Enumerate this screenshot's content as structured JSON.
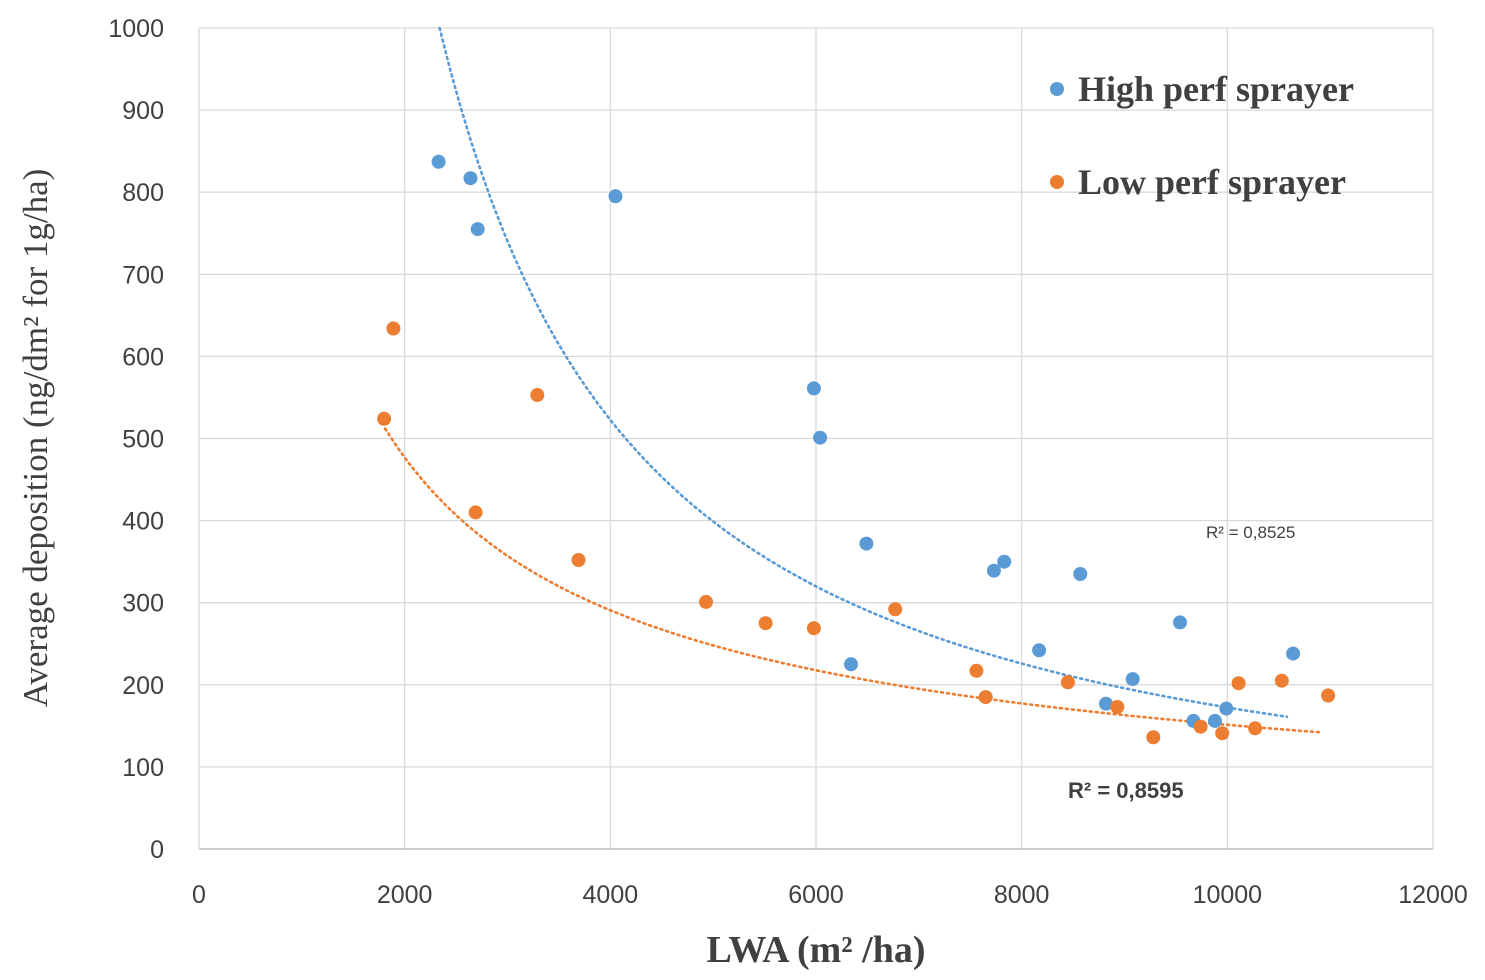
{
  "chart_data": {
    "type": "scatter",
    "title": "",
    "xlabel": "LWA (m² /ha)",
    "ylabel": "Average deposition (ng/dm² for 1g/ha)",
    "xlim": [
      0,
      12000
    ],
    "ylim": [
      0,
      1000
    ],
    "x_ticks": [
      0,
      2000,
      4000,
      6000,
      8000,
      10000,
      12000
    ],
    "y_ticks": [
      0,
      100,
      200,
      300,
      400,
      500,
      600,
      700,
      800,
      900,
      1000
    ],
    "grid": "vertical-and-horizontal",
    "legend_position": "top-right",
    "series": [
      {
        "name": "High perf sprayer",
        "color": "#5B9BD5",
        "points": [
          [
            2330,
            837
          ],
          [
            2640,
            817
          ],
          [
            2710,
            755
          ],
          [
            4050,
            795
          ],
          [
            5980,
            561
          ],
          [
            6040,
            501
          ],
          [
            6340,
            225
          ],
          [
            6490,
            372
          ],
          [
            7730,
            339
          ],
          [
            7830,
            350
          ],
          [
            8170,
            242
          ],
          [
            8570,
            335
          ],
          [
            8820,
            177
          ],
          [
            9080,
            207
          ],
          [
            9540,
            276
          ],
          [
            9670,
            156
          ],
          [
            9880,
            156
          ],
          [
            9990,
            171
          ],
          [
            10640,
            238
          ]
        ],
        "trendline": {
          "type": "power",
          "x_range": [
            2340,
            10580
          ],
          "y_start": 1000,
          "y_end": 161,
          "r2_label": "R² = 0,8525"
        }
      },
      {
        "name": "Low perf sprayer",
        "color": "#ED7D31",
        "points": [
          [
            1800,
            524
          ],
          [
            1890,
            634
          ],
          [
            2690,
            410
          ],
          [
            3290,
            553
          ],
          [
            3690,
            352
          ],
          [
            4930,
            301
          ],
          [
            5510,
            275
          ],
          [
            5980,
            269
          ],
          [
            6770,
            292
          ],
          [
            7560,
            217
          ],
          [
            7650,
            185
          ],
          [
            8450,
            203
          ],
          [
            8930,
            173
          ],
          [
            9280,
            136
          ],
          [
            9740,
            149
          ],
          [
            9950,
            141
          ],
          [
            10110,
            202
          ],
          [
            10270,
            147
          ],
          [
            10530,
            205
          ],
          [
            10980,
            187
          ]
        ],
        "trendline": {
          "type": "power",
          "x_range": [
            1810,
            10920
          ],
          "y_start": 512,
          "y_end": 142,
          "r2_label": "R² = 0,8595"
        }
      }
    ]
  }
}
